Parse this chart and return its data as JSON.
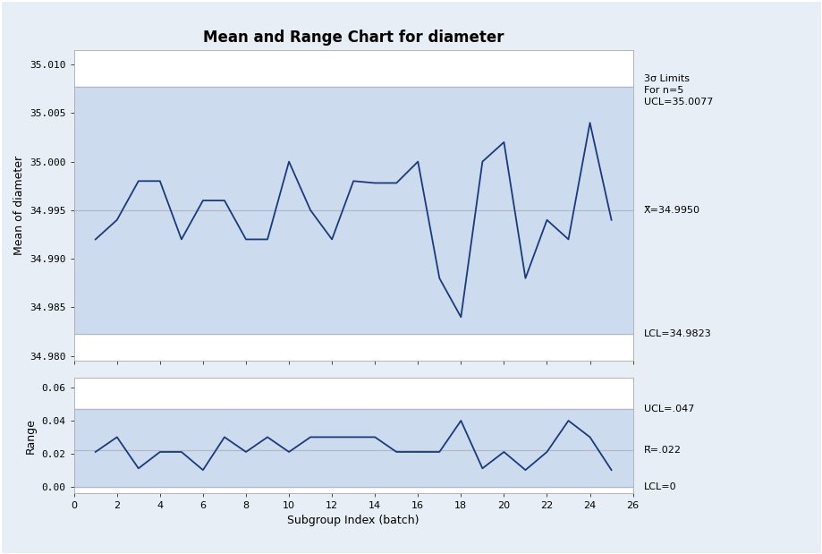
{
  "title": "Mean and Range Chart for diameter",
  "xlabel": "Subgroup Index (batch)",
  "ylabel_mean": "Mean of diameter",
  "ylabel_range": "Range",
  "subgroups": [
    1,
    2,
    3,
    4,
    5,
    6,
    7,
    8,
    9,
    10,
    11,
    12,
    13,
    14,
    15,
    16,
    17,
    18,
    19,
    20,
    21,
    22,
    23,
    24,
    25
  ],
  "mean_values": [
    34.992,
    34.994,
    34.998,
    34.998,
    34.992,
    34.996,
    34.996,
    34.992,
    34.992,
    35.0,
    34.995,
    34.992,
    34.998,
    34.9978,
    34.9978,
    35.0,
    34.988,
    34.984,
    35.0,
    35.002,
    34.988,
    34.994,
    34.992,
    35.004,
    34.994
  ],
  "range_values": [
    0.021,
    0.03,
    0.011,
    0.021,
    0.021,
    0.01,
    0.03,
    0.021,
    0.03,
    0.021,
    0.03,
    0.03,
    0.03,
    0.03,
    0.021,
    0.021,
    0.021,
    0.04,
    0.011,
    0.021,
    0.01,
    0.021,
    0.04,
    0.03,
    0.01
  ],
  "mean_ucl": 35.0077,
  "mean_cl": 34.995,
  "mean_lcl": 34.9823,
  "range_ucl": 0.047,
  "range_cl": 0.022,
  "range_lcl": 0,
  "mean_ylim": [
    34.9795,
    35.0115
  ],
  "range_ylim": [
    -0.004,
    0.066
  ],
  "mean_yticks": [
    34.98,
    34.985,
    34.99,
    34.995,
    35.0,
    35.005,
    35.01
  ],
  "range_yticks": [
    0.0,
    0.02,
    0.04,
    0.06
  ],
  "xticks": [
    0,
    2,
    4,
    6,
    8,
    10,
    12,
    14,
    16,
    18,
    20,
    22,
    24,
    26
  ],
  "line_color": "#1a3a7a",
  "control_line_color": "#b0b8c8",
  "ucl_lcl_line_color": "#b0b8c8",
  "fill_color": "#ccdcee",
  "annotation_3sigma": "3σ Limits\nFor n=5\nUCL=35.0077",
  "annotation_cl": "X̅=34.9950",
  "annotation_lcl_mean": "LCL=34.9823",
  "annotation_ucl_range": "UCL=.047",
  "annotation_cl_range": "R̅=.022",
  "annotation_lcl_range": "LCL=0",
  "bg_color": "#e8eef5",
  "plot_bg_color": "#ffffff",
  "outer_bg": "#dce6f0",
  "title_fontsize": 12,
  "label_fontsize": 9,
  "tick_fontsize": 8,
  "annot_fontsize": 8
}
